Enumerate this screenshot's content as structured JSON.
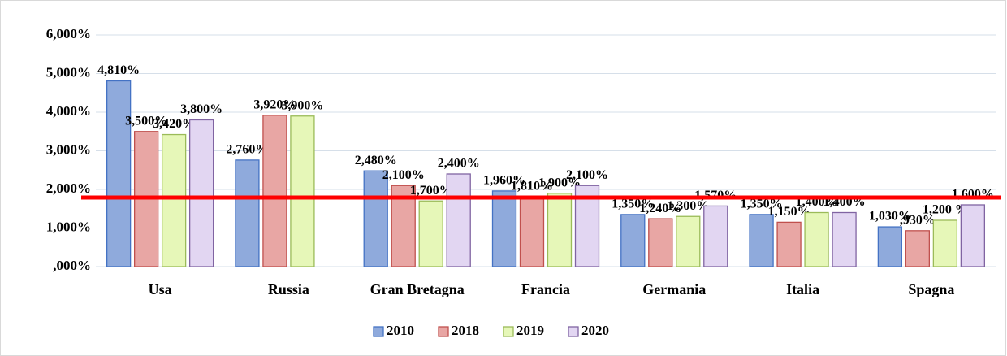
{
  "chart_data": {
    "type": "bar",
    "categories": [
      "Usa",
      "Russia",
      "Gran Bretagna",
      "Francia",
      "Germania",
      "Italia",
      "Spagna"
    ],
    "series": [
      {
        "name": "2010",
        "color": "#8faadc",
        "stroke": "#4472c4",
        "values": [
          4.81,
          2.76,
          2.48,
          1.96,
          1.35,
          1.35,
          1.03
        ],
        "value_labels": [
          "4,810%",
          "2,760%",
          "2,480%",
          "1,960%",
          "1,350%",
          "1,350%",
          "1,030%"
        ]
      },
      {
        "name": "2018",
        "color": "#e8a6a4",
        "stroke": "#c0504d",
        "values": [
          3.5,
          3.92,
          2.1,
          1.81,
          1.24,
          1.15,
          0.93
        ],
        "value_labels": [
          "3,500%",
          "3,920%",
          "2,100%",
          "1,810%",
          "1,240%",
          "1,150%",
          ",930%"
        ]
      },
      {
        "name": "2019",
        "color": "#e6f7b8",
        "stroke": "#9bbb59",
        "values": [
          3.42,
          3.9,
          1.7,
          1.9,
          1.3,
          1.4,
          1.2
        ],
        "value_labels": [
          "3,420%",
          "3,900%",
          "1,700%",
          "1,900%",
          "1,300%",
          "1,400%",
          "1,200 %"
        ]
      },
      {
        "name": "2020",
        "color": "#e2d6f2",
        "stroke": "#8064a2",
        "values": [
          3.8,
          null,
          2.4,
          2.1,
          1.57,
          1.4,
          1.6
        ],
        "value_labels": [
          "3,800%",
          null,
          "2,400%",
          "2,100%",
          "1,570%",
          "1,400%",
          "1,600%"
        ]
      }
    ],
    "ylim": [
      0,
      6
    ],
    "yticks": [
      {
        "value": 0,
        "label": ",000%"
      },
      {
        "value": 1,
        "label": "1,000%"
      },
      {
        "value": 2,
        "label": "2,000%"
      },
      {
        "value": 3,
        "label": "3,000%"
      },
      {
        "value": 4,
        "label": "4,000%"
      },
      {
        "value": 5,
        "label": "5,000%"
      },
      {
        "value": 6,
        "label": "6,000%"
      }
    ],
    "grid": true,
    "legend": "bottom",
    "reference_line": {
      "value": 1.79,
      "color": "#ff0000"
    }
  }
}
